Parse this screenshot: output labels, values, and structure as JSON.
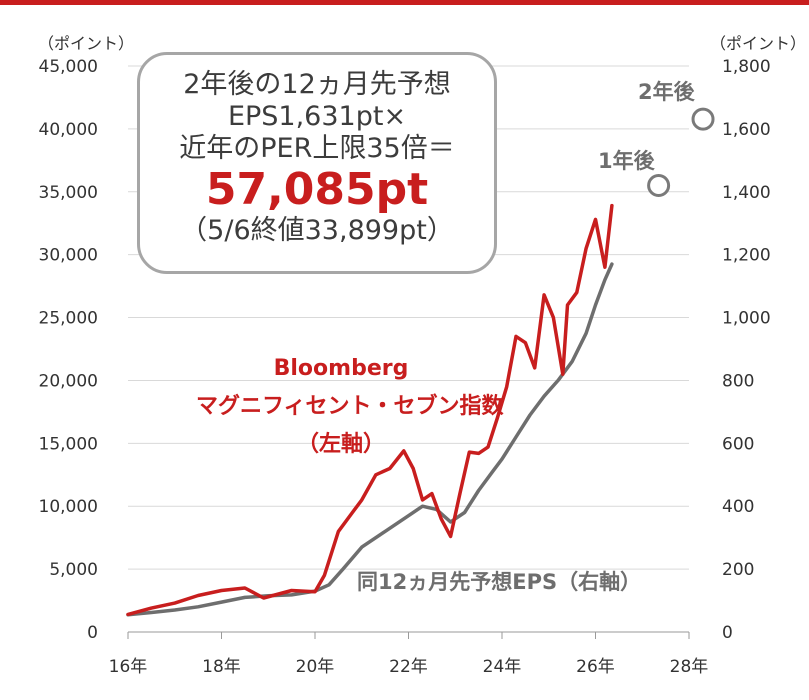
{
  "chart_data": {
    "type": "line",
    "x_ticks": [
      "16年",
      "18年",
      "20年",
      "22年",
      "24年",
      "26年",
      "28年"
    ],
    "x_range": [
      2016,
      2028
    ],
    "y_left": {
      "unit": "（ポイント）",
      "ylim": [
        0,
        45000
      ],
      "ticks": [
        "0",
        "5,000",
        "10,000",
        "15,000",
        "20,000",
        "25,000",
        "30,000",
        "35,000",
        "40,000",
        "45,000"
      ]
    },
    "y_right": {
      "unit": "（ポイント）",
      "ylim": [
        0,
        1800
      ],
      "ticks": [
        "0",
        "200",
        "400",
        "600",
        "800",
        "1,000",
        "1,200",
        "1,400",
        "1,600",
        "1,800"
      ]
    },
    "grid": true,
    "series": [
      {
        "name": "Bloomberg マグニフィセント・セブン指数（左軸）",
        "axis": "left",
        "color": "#c81e1e",
        "x": [
          2016.0,
          2016.5,
          2017.0,
          2017.5,
          2018.0,
          2018.5,
          2018.9,
          2019.5,
          2020.0,
          2020.2,
          2020.5,
          2020.8,
          2021.0,
          2021.3,
          2021.6,
          2021.9,
          2022.1,
          2022.3,
          2022.5,
          2022.7,
          2022.9,
          2023.1,
          2023.3,
          2023.5,
          2023.7,
          2023.9,
          2024.1,
          2024.3,
          2024.5,
          2024.7,
          2024.9,
          2025.1,
          2025.3,
          2025.4,
          2025.6,
          2025.8,
          2026.0,
          2026.2,
          2026.35
        ],
        "values": [
          1400,
          1900,
          2300,
          2900,
          3300,
          3500,
          2700,
          3300,
          3200,
          4500,
          8000,
          9500,
          10500,
          12500,
          13000,
          14400,
          13000,
          10500,
          11000,
          9000,
          7600,
          11000,
          14300,
          14200,
          14700,
          17000,
          19500,
          23500,
          23000,
          21000,
          26800,
          25000,
          20500,
          26000,
          27000,
          30500,
          32800,
          29000,
          33899
        ]
      },
      {
        "name": "同12ヵ月先予想EPS（右軸）",
        "axis": "right",
        "color": "#6e6e6e",
        "x": [
          2016.0,
          2016.5,
          2017.0,
          2017.5,
          2018.0,
          2018.5,
          2019.0,
          2019.5,
          2020.0,
          2020.3,
          2020.6,
          2021.0,
          2021.5,
          2022.0,
          2022.3,
          2022.6,
          2022.9,
          2023.2,
          2023.5,
          2023.8,
          2024.0,
          2024.3,
          2024.6,
          2024.9,
          2025.2,
          2025.5,
          2025.8,
          2026.0,
          2026.2,
          2026.35
        ],
        "values": [
          55,
          62,
          70,
          80,
          95,
          110,
          115,
          118,
          130,
          150,
          200,
          270,
          320,
          370,
          400,
          390,
          350,
          380,
          450,
          510,
          550,
          620,
          690,
          750,
          800,
          860,
          950,
          1040,
          1120,
          1170
        ]
      }
    ],
    "forecast_points": [
      {
        "label": "1年後",
        "x": 2027.35,
        "y_right": 1420
      },
      {
        "label": "2年後",
        "x": 2028.3,
        "y_right": 1631
      }
    ]
  },
  "callout": {
    "line1": "2年後の12ヵ月先予想",
    "line2": "EPS1,631pt×",
    "line3": "近年のPER上限35倍＝",
    "result": "57,085pt",
    "close_note": "（5/6終値33,899pt）"
  },
  "labels": {
    "red_series": [
      "Bloomberg",
      "マグニフィセント・セブン指数",
      "（左軸）"
    ],
    "gray_series": "同12ヵ月先予想EPS（右軸）"
  },
  "colors": {
    "accent": "#c81e1e",
    "gray": "#6e6e6e",
    "grid": "#d9d9d9",
    "axis_text": "#333333"
  }
}
